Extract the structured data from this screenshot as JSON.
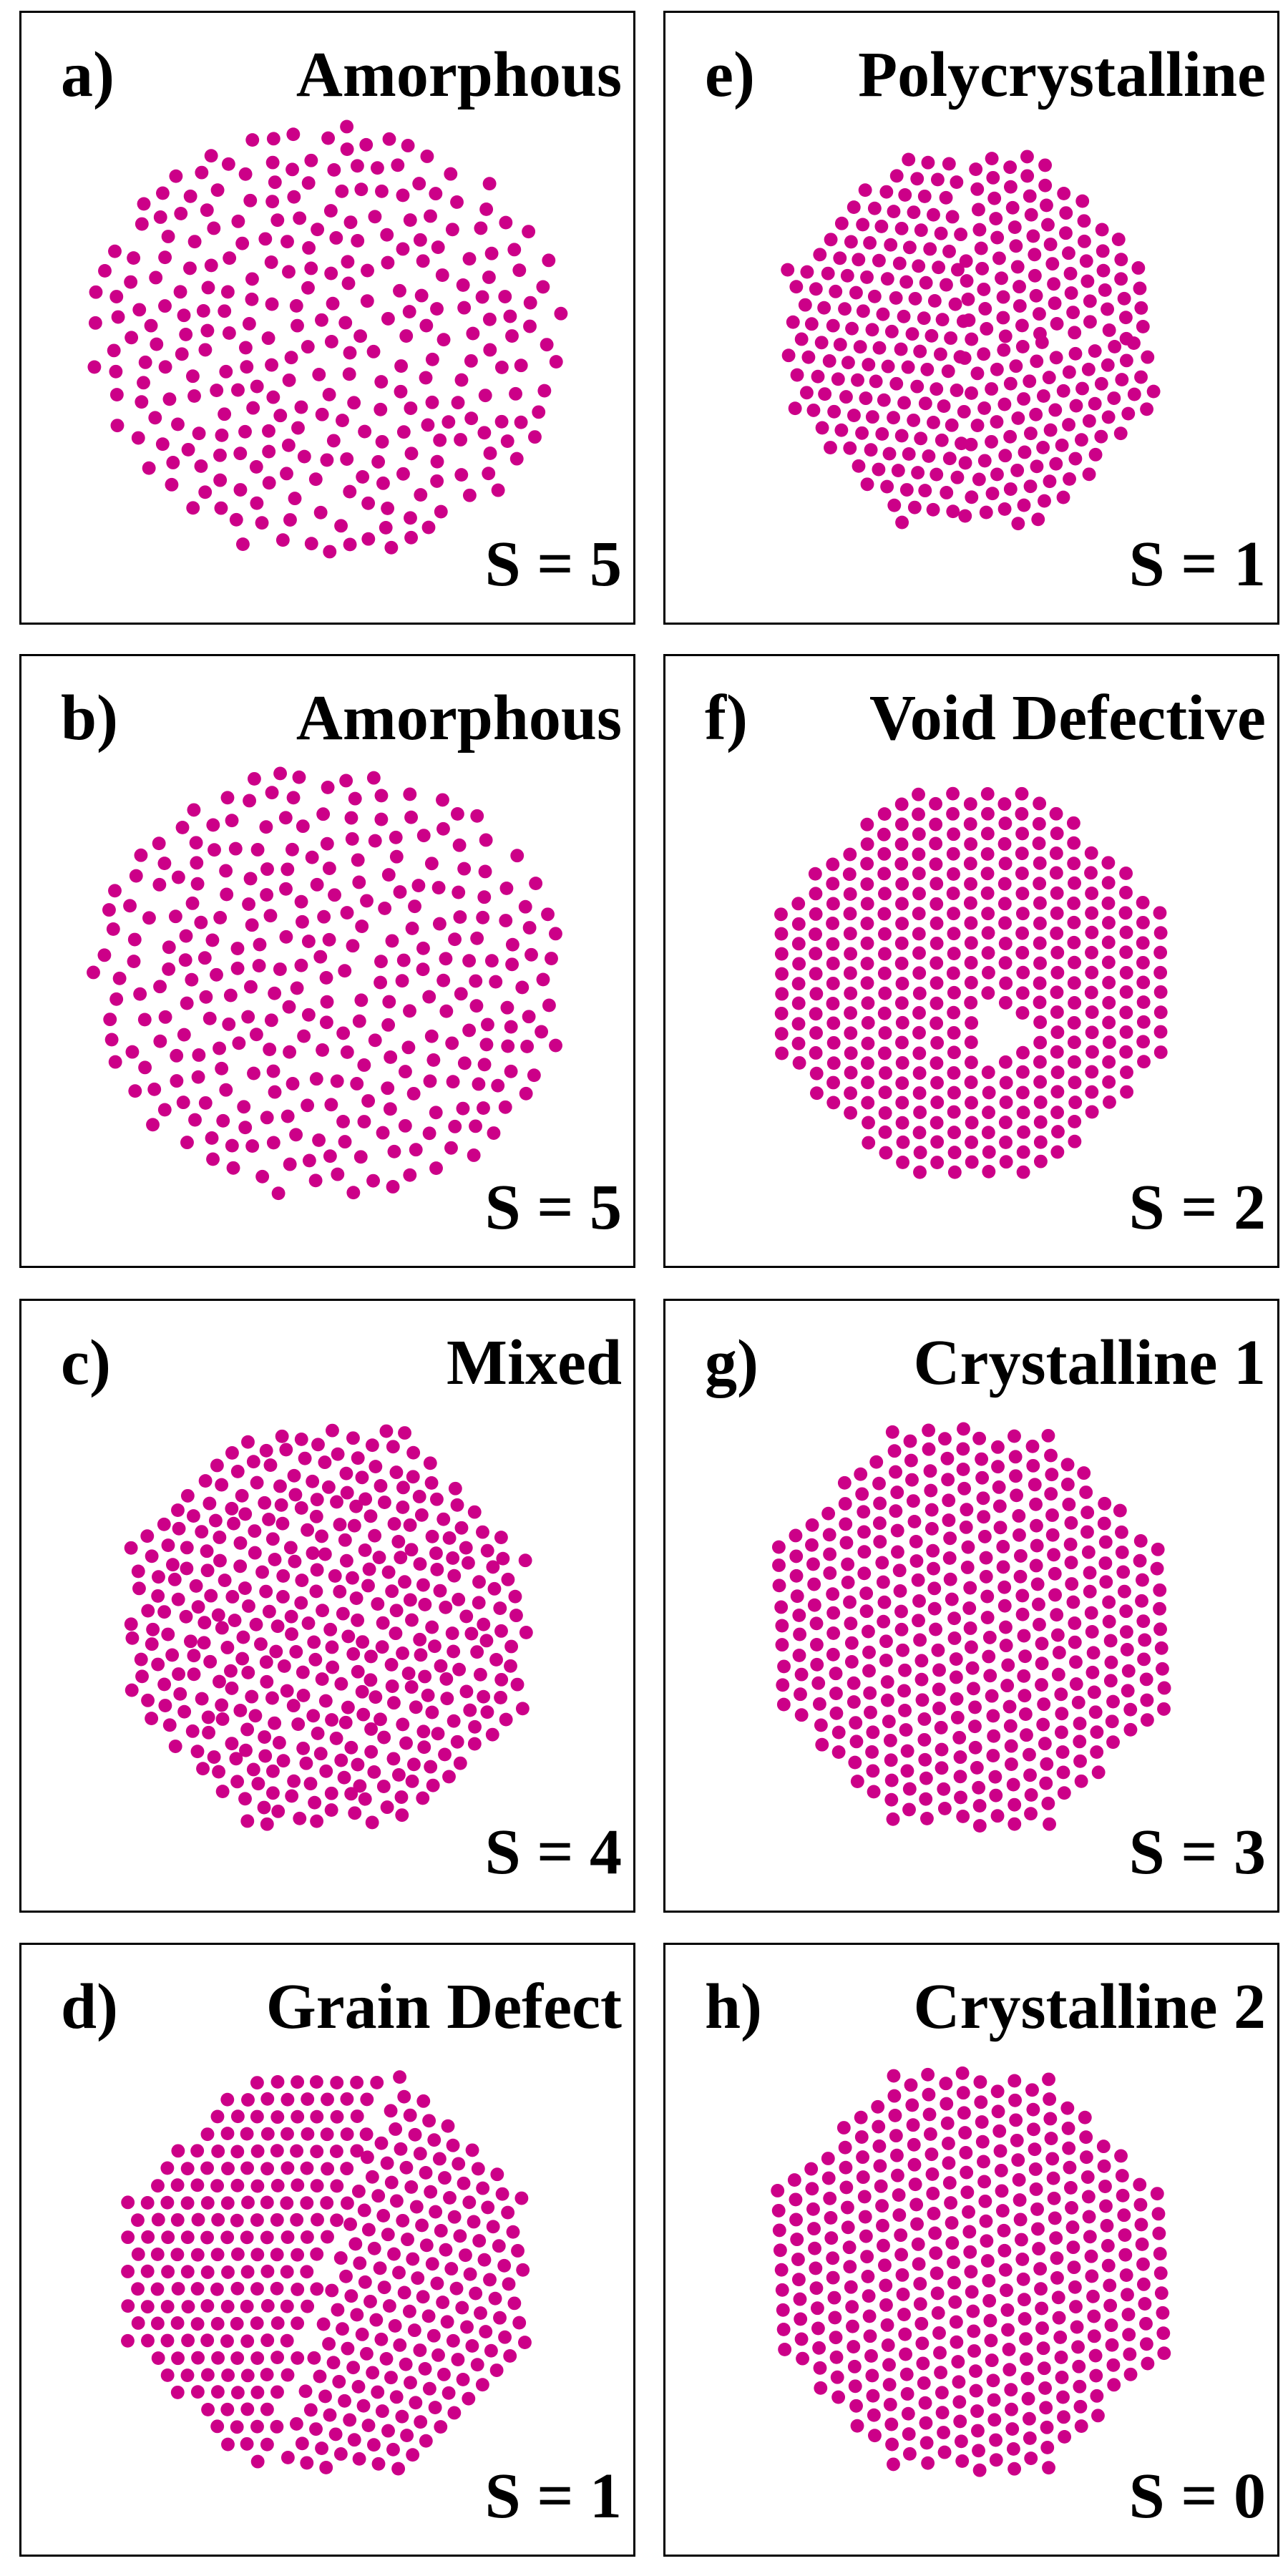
{
  "dot_color": "#cc0088",
  "panels": [
    {
      "id": "a",
      "letter": "a)",
      "title": "Amorphous",
      "score": "S = 5",
      "pattern": "amorphous",
      "seed": 11,
      "jitter": 0.9
    },
    {
      "id": "b",
      "letter": "b)",
      "title": "Amorphous",
      "score": "S = 5",
      "pattern": "amorphous",
      "seed": 23,
      "jitter": 0.8
    },
    {
      "id": "c",
      "letter": "c)",
      "title": "Mixed",
      "score": "S = 4",
      "pattern": "mixed",
      "seed": 37,
      "jitter": 0.35
    },
    {
      "id": "d",
      "letter": "d)",
      "title": "Grain Defect",
      "score": "S = 1",
      "pattern": "grain",
      "seed": 41,
      "jitter": 0.05
    },
    {
      "id": "e",
      "letter": "e)",
      "title": "Polycrystalline",
      "score": "S = 1",
      "pattern": "poly",
      "seed": 53,
      "jitter": 0.1
    },
    {
      "id": "f",
      "letter": "f)",
      "title": "Void Defective",
      "score": "S = 2",
      "pattern": "void",
      "seed": 67,
      "jitter": 0.04
    },
    {
      "id": "g",
      "letter": "g)",
      "title": "Crystalline 1",
      "score": "S = 3",
      "pattern": "crystal",
      "seed": 71,
      "jitter": 0.12
    },
    {
      "id": "h",
      "letter": "h)",
      "title": "Crystalline 2",
      "score": "S = 0",
      "pattern": "crystal",
      "seed": 83,
      "jitter": 0.03
    }
  ]
}
